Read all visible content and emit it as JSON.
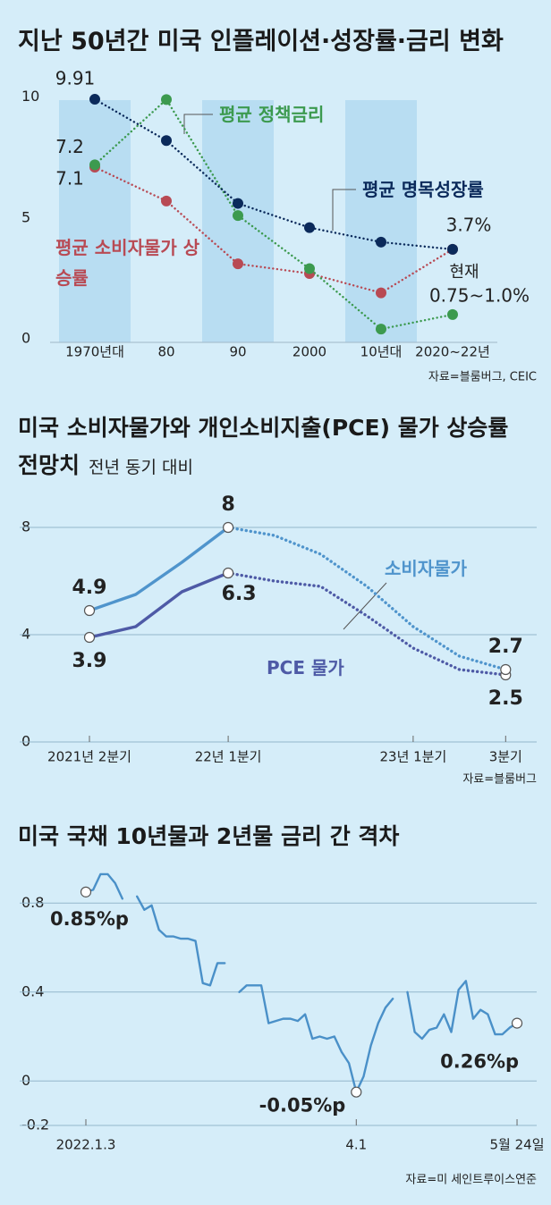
{
  "chart_data": [
    {
      "type": "line",
      "title": "지난 50년간 미국 인플레이션·성장률·금리 변화",
      "categories": [
        "1970년대",
        "80",
        "90",
        "2000",
        "10년대",
        "2020~22년"
      ],
      "series": [
        {
          "name": "평균 명목성장률",
          "color": "#0b2a5b",
          "values": [
            9.91,
            8.2,
            5.6,
            4.6,
            4.0,
            3.7
          ],
          "value_labels": [
            "9.91",
            null,
            null,
            null,
            null,
            "3.7%"
          ]
        },
        {
          "name": "평균 정책금리",
          "color": "#3c9a4f",
          "values": [
            7.2,
            9.9,
            5.1,
            2.9,
            0.4,
            1.0
          ],
          "value_labels": [
            "7.2",
            null,
            null,
            null,
            null,
            "0.75~1.0%"
          ]
        },
        {
          "name": "평균 소비자물가 상승률",
          "color": "#b84a54",
          "values": [
            7.1,
            5.7,
            3.1,
            2.7,
            1.9,
            3.7
          ],
          "value_labels": [
            "7.1",
            null,
            null,
            null,
            null,
            null
          ]
        }
      ],
      "annotation": "현재",
      "ylim": [
        -0.15,
        10.8
      ],
      "yticks": [
        10,
        5,
        0
      ],
      "grid": false,
      "source": "자료=블룸버그, CEIC"
    },
    {
      "type": "line",
      "title": "미국 소비자물가와 개인소비지출(PCE) 물가 상승률 전망치",
      "subtitle": "전년 동기 대비",
      "categories": [
        "2021년 2분기",
        null,
        null,
        "22년 1분기",
        null,
        null,
        null,
        "23년 1분기",
        null,
        "3분기"
      ],
      "series": [
        {
          "name": "소비자물가",
          "color": "#4f94cc",
          "values": [
            4.9,
            5.5,
            6.7,
            8,
            7.7,
            7.0,
            5.8,
            4.3,
            3.2,
            2.7
          ],
          "value_labels": [
            "4.9",
            null,
            null,
            "8",
            null,
            null,
            null,
            null,
            null,
            "2.7"
          ]
        },
        {
          "name": "PCE 물가",
          "color": "#4e5aa6",
          "values": [
            3.9,
            4.3,
            5.6,
            6.3,
            6.0,
            5.8,
            4.7,
            3.5,
            2.7,
            2.5
          ],
          "value_labels": [
            "3.9",
            null,
            null,
            "6.3",
            null,
            null,
            null,
            null,
            null,
            "2.5"
          ]
        }
      ],
      "dotted_from": 3,
      "ylim": [
        0,
        8.5
      ],
      "yticks": [
        8,
        4,
        0
      ],
      "grid": true,
      "source": "자료=블룸버그"
    },
    {
      "type": "line",
      "title": "미국 국채 10년물과 2년물 금리 간 격차",
      "categories": [
        "2022.1.3",
        null,
        null,
        null,
        null,
        null,
        null,
        null,
        null,
        null,
        null,
        null,
        null,
        null,
        null,
        null,
        null,
        null,
        null,
        null,
        null,
        null,
        null,
        null,
        null,
        null,
        null,
        null,
        null,
        null,
        null,
        null,
        null,
        null,
        null,
        null,
        null,
        "4.1",
        null,
        null,
        null,
        null,
        null,
        null,
        null,
        null,
        null,
        null,
        null,
        null,
        null,
        null,
        null,
        null,
        null,
        null,
        null,
        null,
        null,
        "5월 24일"
      ],
      "values": [
        0.85,
        0.86,
        0.93,
        0.93,
        0.89,
        0.82,
        null,
        0.83,
        0.77,
        0.79,
        0.68,
        0.65,
        0.65,
        0.64,
        0.64,
        0.63,
        0.44,
        0.43,
        0.53,
        0.53,
        null,
        0.4,
        0.43,
        0.43,
        0.43,
        0.26,
        0.27,
        0.28,
        0.28,
        0.27,
        0.3,
        0.19,
        0.2,
        0.19,
        0.2,
        0.13,
        0.08,
        -0.05,
        0.02,
        0.16,
        0.26,
        0.33,
        0.37,
        null,
        0.4,
        0.22,
        0.19,
        0.23,
        0.24,
        0.3,
        0.22,
        0.41,
        0.45,
        0.28,
        0.32,
        0.3,
        0.21,
        0.21,
        0.24,
        0.26
      ],
      "value_labels": [
        "0.85%p",
        null,
        null,
        null,
        null,
        null,
        null,
        null,
        null,
        null,
        null,
        null,
        null,
        null,
        null,
        null,
        null,
        null,
        null,
        null,
        null,
        null,
        null,
        null,
        null,
        null,
        null,
        null,
        null,
        null,
        null,
        null,
        null,
        null,
        null,
        null,
        null,
        "-0.05%p",
        null,
        null,
        null,
        null,
        null,
        null,
        null,
        null,
        null,
        null,
        null,
        null,
        null,
        null,
        null,
        null,
        null,
        null,
        null,
        null,
        null,
        "0.26%p"
      ],
      "color": "#4a90c8",
      "ylim": [
        -0.2,
        0.95
      ],
      "yticks": [
        0.8,
        0.4,
        0,
        -0.2
      ],
      "grid": true,
      "source": "자료=미 세인트루이스연준"
    }
  ]
}
